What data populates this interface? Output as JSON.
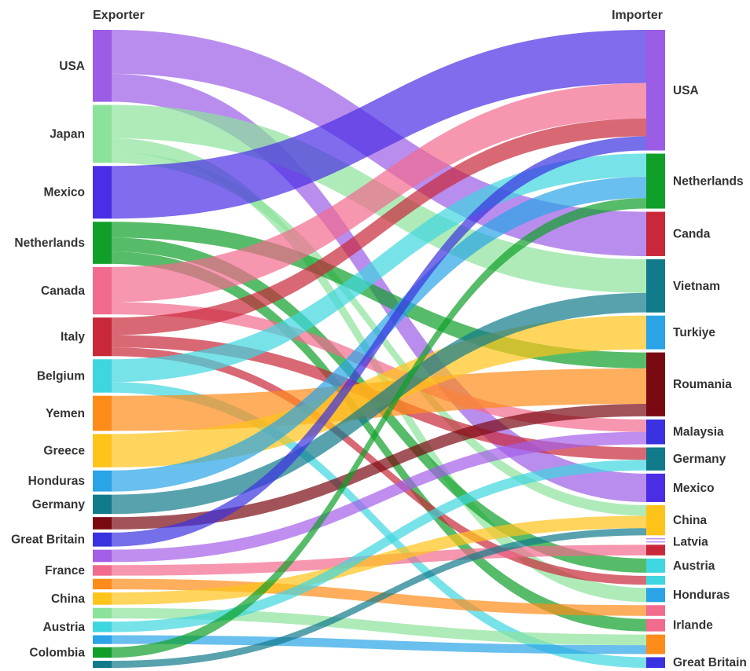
{
  "chart_data": {
    "type": "sankey",
    "left_header": "Exporter",
    "right_header": "Importer",
    "exporters": [
      {
        "id": "usa",
        "label": "USA",
        "color": "#9b5de5"
      },
      {
        "id": "japan",
        "label": "Japan",
        "color": "#8be39b"
      },
      {
        "id": "mexico",
        "label": "Mexico",
        "color": "#4a2ee6"
      },
      {
        "id": "netherlands",
        "label": "Netherlands",
        "color": "#10a02a"
      },
      {
        "id": "canada",
        "label": "Canada",
        "color": "#f26a8d"
      },
      {
        "id": "italy",
        "label": "Italy",
        "color": "#c9283a"
      },
      {
        "id": "belgium",
        "label": "Belgium",
        "color": "#3ed6e0"
      },
      {
        "id": "yemen",
        "label": "Yemen",
        "color": "#ff8c1a"
      },
      {
        "id": "greece",
        "label": "Greece",
        "color": "#ffc31a"
      },
      {
        "id": "honduras",
        "label": "Honduras",
        "color": "#2aa4e6"
      },
      {
        "id": "germany",
        "label": "Germany",
        "color": "#117a8b"
      },
      {
        "id": "unnamed_dark_red",
        "label": "",
        "color": "#7a0a12"
      },
      {
        "id": "great_britain",
        "label": "Great Britain",
        "color": "#3a32e0"
      },
      {
        "id": "unnamed_purple",
        "label": "",
        "color": "#a45ee8"
      },
      {
        "id": "france",
        "label": "France",
        "color": "#f26a8d"
      },
      {
        "id": "unnamed_orange",
        "label": "",
        "color": "#ff8c1a"
      },
      {
        "id": "china",
        "label": "China",
        "color": "#ffc31a"
      },
      {
        "id": "unnamed_light_green",
        "label": "",
        "color": "#8be39b"
      },
      {
        "id": "austria",
        "label": "Austria",
        "color": "#3ed6e0"
      },
      {
        "id": "unnamed_blue",
        "label": "",
        "color": "#2aa4e6"
      },
      {
        "id": "colombia",
        "label": "Colombia",
        "color": "#10a02a"
      },
      {
        "id": "unnamed_teal",
        "label": "",
        "color": "#117a8b"
      }
    ],
    "importers": [
      {
        "id": "usa",
        "label": "USA",
        "color": "#9b5de5"
      },
      {
        "id": "netherlands",
        "label": "Netherlands",
        "color": "#10a02a"
      },
      {
        "id": "canda",
        "label": "Canda",
        "color": "#c9283a"
      },
      {
        "id": "vietnam",
        "label": "Vietnam",
        "color": "#117a8b"
      },
      {
        "id": "turkiye",
        "label": "Turkiye",
        "color": "#2aa4e6"
      },
      {
        "id": "roumania",
        "label": "Roumania",
        "color": "#7a0a12"
      },
      {
        "id": "malaysia",
        "label": "Malaysia",
        "color": "#3a32e0"
      },
      {
        "id": "germany",
        "label": "Germany",
        "color": "#117a8b"
      },
      {
        "id": "mexico",
        "label": "Mexico",
        "color": "#4a2ee6"
      },
      {
        "id": "china",
        "label": "China",
        "color": "#ffc31a"
      },
      {
        "id": "unnamed_purple",
        "label": "",
        "color": "#a45ee8"
      },
      {
        "id": "latvia",
        "label": "Latvia",
        "color": "#a45ee8"
      },
      {
        "id": "unnamed_red",
        "label": "",
        "color": "#c9283a"
      },
      {
        "id": "austria",
        "label": "Austria",
        "color": "#3ed6e0"
      },
      {
        "id": "unnamed_cyan",
        "label": "",
        "color": "#3ed6e0"
      },
      {
        "id": "honduras",
        "label": "Honduras",
        "color": "#2aa4e6"
      },
      {
        "id": "unnamed_pink",
        "label": "",
        "color": "#f26a8d"
      },
      {
        "id": "irlande",
        "label": "Irlande",
        "color": "#f26a8d"
      },
      {
        "id": "unnamed_orange",
        "label": "",
        "color": "#ff8c1a"
      },
      {
        "id": "great_britain",
        "label": "Great Britain",
        "color": "#3a32e0"
      }
    ],
    "flows": [
      {
        "source": "usa",
        "target": "canda",
        "value": 50
      },
      {
        "source": "usa",
        "target": "mexico",
        "value": 32
      },
      {
        "source": "japan",
        "target": "vietnam",
        "value": 38
      },
      {
        "source": "japan",
        "target": "honduras",
        "value": 16
      },
      {
        "source": "japan",
        "target": "china",
        "value": 12
      },
      {
        "source": "mexico",
        "target": "usa",
        "value": 60
      },
      {
        "source": "netherlands",
        "target": "roumania",
        "value": 18
      },
      {
        "source": "netherlands",
        "target": "austria",
        "value": 16
      },
      {
        "source": "netherlands",
        "target": "irlande",
        "value": 14
      },
      {
        "source": "canada",
        "target": "usa",
        "value": 40
      },
      {
        "source": "canada",
        "target": "malaysia",
        "value": 14
      },
      {
        "source": "italy",
        "target": "usa",
        "value": 20
      },
      {
        "source": "italy",
        "target": "germany",
        "value": 14
      },
      {
        "source": "italy",
        "target": "unnamed_cyan",
        "value": 10
      },
      {
        "source": "belgium",
        "target": "netherlands",
        "value": 26
      },
      {
        "source": "belgium",
        "target": "great_britain",
        "value": 12
      },
      {
        "source": "yemen",
        "target": "roumania",
        "value": 40
      },
      {
        "source": "greece",
        "target": "turkiye",
        "value": 38
      },
      {
        "source": "honduras",
        "target": "netherlands",
        "value": 24
      },
      {
        "source": "germany",
        "target": "vietnam",
        "value": 22
      },
      {
        "source": "unnamed_dark_red",
        "target": "roumania",
        "value": 14
      },
      {
        "source": "great_britain",
        "target": "usa",
        "value": 16
      },
      {
        "source": "unnamed_purple",
        "target": "malaysia",
        "value": 14
      },
      {
        "source": "france",
        "target": "unnamed_red",
        "value": 12
      },
      {
        "source": "unnamed_orange",
        "target": "unnamed_pink",
        "value": 12
      },
      {
        "source": "china",
        "target": "china",
        "value": 14
      },
      {
        "source": "unnamed_light_green",
        "target": "unnamed_orange",
        "value": 12
      },
      {
        "source": "austria",
        "target": "germany",
        "value": 12
      },
      {
        "source": "unnamed_blue",
        "target": "unnamed_orange",
        "value": 10
      },
      {
        "source": "colombia",
        "target": "netherlands",
        "value": 12
      },
      {
        "source": "unnamed_teal",
        "target": "china",
        "value": 8
      }
    ]
  }
}
